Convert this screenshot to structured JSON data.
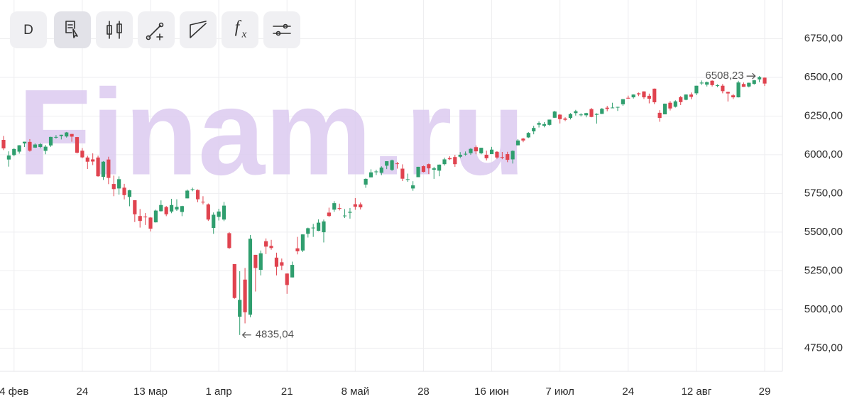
{
  "chart_data": {
    "type": "candlestick",
    "watermark": "Finam.ru",
    "toolbar": {
      "interval": "D",
      "formula": [
        "f",
        "x"
      ]
    },
    "annotations": {
      "high": "6508,23",
      "low": "4835,04"
    },
    "categories": [
      null,
      null,
      "4 фев",
      null,
      null,
      null,
      null,
      null,
      null,
      null,
      null,
      null,
      null,
      null,
      null,
      "24",
      null,
      null,
      null,
      null,
      null,
      null,
      null,
      null,
      null,
      null,
      null,
      null,
      "13 мар",
      null,
      null,
      null,
      null,
      null,
      null,
      null,
      null,
      null,
      null,
      null,
      null,
      "1 апр",
      null,
      null,
      null,
      null,
      null,
      null,
      null,
      null,
      null,
      null,
      null,
      null,
      "21",
      null,
      null,
      null,
      null,
      null,
      null,
      null,
      null,
      null,
      null,
      null,
      null,
      "8 май",
      null,
      null,
      null,
      null,
      null,
      null,
      null,
      null,
      null,
      null,
      null,
      null,
      "28",
      null,
      null,
      null,
      null,
      null,
      null,
      null,
      null,
      null,
      null,
      null,
      null,
      "16 июн",
      null,
      null,
      null,
      null,
      null,
      null,
      null,
      null,
      null,
      null,
      null,
      null,
      "7 июл",
      null,
      null,
      null,
      null,
      null,
      null,
      null,
      null,
      null,
      null,
      null,
      null,
      "24",
      null,
      null,
      null,
      null,
      null,
      null,
      null,
      null,
      null,
      null,
      null,
      null,
      "12 авг",
      null,
      null,
      null,
      null,
      null,
      null,
      null,
      null,
      null,
      null,
      null,
      null,
      "29"
    ],
    "open": [
      6096,
      5969,
      5998,
      6020,
      6073,
      6083,
      6046,
      6050,
      6025,
      6060,
      6115,
      6121,
      6118,
      6134,
      6114,
      6026,
      5982,
      5970,
      5982,
      5857,
      5969,
      5811,
      5782,
      5787,
      5727,
      5706,
      5604,
      5600,
      5594,
      5563,
      5635,
      5662,
      5633,
      5646,
      5630,
      5718,
      5776,
      5772,
      5696,
      5679,
      5527,
      5598,
      5581,
      5493,
      5293,
      4953,
      5193,
      4966,
      5353,
      5256,
      5441,
      5411,
      5335,
      5305,
      5232,
      5207,
      5395,
      5381,
      5489,
      5529,
      5508,
      5499,
      5626,
      5645,
      5655,
      5605,
      5625,
      5680,
      5679,
      5807,
      5854,
      5887,
      5883,
      5929,
      5902,
      5944,
      5910,
      5841,
      5782,
      5855,
      5926,
      5939,
      5903,
      5897,
      5939,
      5978,
      5985,
      5987,
      6004,
      6010,
      6049,
      6009,
      6000,
      6004,
      6019,
      5985,
      6004,
      5970,
      6061,
      6104,
      6112,
      6151,
      6194,
      6187,
      6193,
      6239,
      6259,
      6234,
      6238,
      6269,
      6256,
      6255,
      6295,
      6258,
      6264,
      6304,
      6305,
      6307,
      6326,
      6368,
      6371,
      6397,
      6409,
      6381,
      6427,
      6271,
      6261,
      6336,
      6310,
      6372,
      6355,
      6389,
      6397,
      6461,
      6453,
      6478,
      6445,
      6446,
      6406,
      6384,
      6371,
      6457,
      6441,
      6458,
      6487,
      6498
    ],
    "high": [
      6121,
      6022,
      6042,
      6062,
      6084,
      6101,
      6073,
      6076,
      6063,
      6116,
      6127,
      6129,
      6147,
      6134,
      6115,
      6043,
      5993,
      6009,
      5994,
      5959,
      5987,
      5865,
      5860,
      5812,
      5773,
      5706,
      5649,
      5623,
      5597,
      5645,
      5705,
      5669,
      5715,
      5712,
      5670,
      5775,
      5787,
      5776,
      5732,
      5685,
      5627,
      5651,
      5695,
      5500,
      5293,
      5247,
      5268,
      5481,
      5353,
      5381,
      5459,
      5450,
      5367,
      5329,
      5233,
      5309,
      5469,
      5485,
      5529,
      5553,
      5582,
      5581,
      5658,
      5700,
      5684,
      5649,
      5656,
      5720,
      5691,
      5847,
      5906,
      5903,
      5925,
      5958,
      5968,
      5953,
      5938,
      5878,
      5829,
      5922,
      5930,
      5943,
      5922,
      5937,
      5981,
      5990,
      5999,
      6017,
      6021,
      6043,
      6060,
      6045,
      6026,
      6051,
      6023,
      6018,
      6019,
      6028,
      6101,
      6109,
      6146,
      6187,
      6215,
      6211,
      6227,
      6284,
      6262,
      6242,
      6269,
      6290,
      6268,
      6271,
      6302,
      6268,
      6302,
      6316,
      6336,
      6310,
      6360,
      6382,
      6390,
      6402,
      6410,
      6395,
      6428,
      6288,
      6331,
      6347,
      6352,
      6380,
      6390,
      6402,
      6446,
      6480,
      6473,
      6481,
      6455,
      6457,
      6407,
      6393,
      6478,
      6467,
      6466,
      6483,
      6508.23,
      6499
    ],
    "low": [
      6030,
      5923,
      5990,
      6007,
      6050,
      6020,
      6044,
      6042,
      6003,
      6051,
      6104,
      6099,
      6111,
      6084,
      6008,
      5977,
      5908,
      5933,
      5858,
      5837,
      5810,
      5732,
      5742,
      5711,
      5667,
      5565,
      5529,
      5546,
      5504,
      5562,
      5633,
      5603,
      5622,
      5637,
      5603,
      5718,
      5764,
      5693,
      5679,
      5572,
      5489,
      5575,
      5571,
      5391,
      5069,
      4835.04,
      4910,
      4950,
      5116,
      5220,
      5358,
      5386,
      5220,
      5255,
      5101,
      5207,
      5356,
      5371,
      5465,
      5469,
      5506,
      5433,
      5597,
      5631,
      5640,
      5591,
      5587,
      5644,
      5646,
      5786,
      5853,
      5869,
      5868,
      5907,
      5896,
      5910,
      5830,
      5825,
      5767,
      5855,
      5886,
      5875,
      5844,
      5861,
      5930,
      5966,
      5922,
      5978,
      5994,
      5999,
      6003,
      6003,
      5963,
      6004,
      5974,
      5971,
      5952,
      5943,
      6060,
      6081,
      6108,
      6132,
      6176,
      6177,
      6188,
      6238,
      6202,
      6217,
      6228,
      6253,
      6247,
      6242,
      6242,
      6201,
      6263,
      6281,
      6303,
      6283,
      6316,
      6361,
      6363,
      6379,
      6360,
      6332,
      6327,
      6213,
      6261,
      6286,
      6305,
      6321,
      6352,
      6359,
      6385,
      6451,
      6441,
      6441,
      6437,
      6397,
      6344,
      6360,
      6370,
      6438,
      6435,
      6453,
      6469,
      6444
    ],
    "close": [
      6041,
      5995,
      6037,
      6061,
      6084,
      6026,
      6066,
      6068,
      6052,
      6115,
      6115,
      6129,
      6144,
      6117,
      6013,
      5983,
      5955,
      5956,
      5861,
      5955,
      5850,
      5778,
      5842,
      5739,
      5770,
      5615,
      5572,
      5599,
      5522,
      5639,
      5675,
      5615,
      5675,
      5663,
      5668,
      5768,
      5777,
      5712,
      5693,
      5581,
      5612,
      5633,
      5671,
      5397,
      5074,
      5062,
      4982,
      5457,
      5268,
      5363,
      5406,
      5397,
      5276,
      5283,
      5158,
      5288,
      5376,
      5485,
      5525,
      5529,
      5561,
      5569,
      5604,
      5687,
      5650,
      5607,
      5631,
      5664,
      5660,
      5844,
      5886,
      5892,
      5917,
      5958,
      5964,
      5940,
      5845,
      5842,
      5802,
      5922,
      5889,
      5912,
      5912,
      5936,
      5970,
      5971,
      5939,
      6000,
      6006,
      6038,
      6022,
      6045,
      5977,
      6033,
      5982,
      5981,
      5967,
      6025,
      6092,
      6092,
      6141,
      6173,
      6205,
      6198,
      6227,
      6279,
      6230,
      6226,
      6263,
      6281,
      6260,
      6269,
      6244,
      6264,
      6297,
      6296,
      6305,
      6309,
      6359,
      6363,
      6389,
      6390,
      6371,
      6362,
      6339,
      6238,
      6330,
      6299,
      6345,
      6340,
      6389,
      6374,
      6446,
      6466,
      6469,
      6450,
      6449,
      6411,
      6396,
      6371,
      6467,
      6439,
      6465,
      6481,
      6502,
      6460
    ],
    "up_color": "#2f9e6e",
    "down_color": "#e0434f",
    "ylim": [
      4600,
      7000
    ],
    "yticks": [
      {
        "value": 4750,
        "label": "4750,00"
      },
      {
        "value": 5000,
        "label": "5000,00"
      },
      {
        "value": 5250,
        "label": "5250,00"
      },
      {
        "value": 5500,
        "label": "5500,00"
      },
      {
        "value": 5750,
        "label": "5750,00"
      },
      {
        "value": 6000,
        "label": "6000,00"
      },
      {
        "value": 6250,
        "label": "6250,00"
      },
      {
        "value": 6500,
        "label": "6500,00"
      },
      {
        "value": 6750,
        "label": "6750,00"
      }
    ],
    "grid": true
  }
}
